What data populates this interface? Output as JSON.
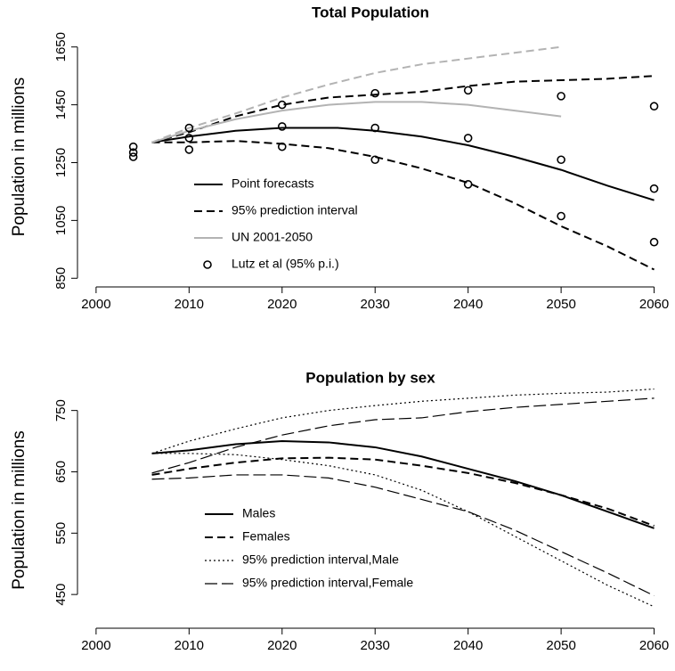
{
  "chart_data": [
    {
      "type": "line",
      "title": "Total Population",
      "y_label": "Population in millions",
      "xlim": [
        1998,
        2061
      ],
      "xticks": [
        2000,
        2010,
        2020,
        2030,
        2040,
        2050,
        2060
      ],
      "ylim": [
        820,
        1720
      ],
      "yticks": [
        850,
        1050,
        1250,
        1450,
        1650
      ],
      "legend": "bottom-left",
      "series": [
        {
          "name": "Point forecasts",
          "color": "#000000",
          "dash": "solid",
          "linewidth": 2,
          "x": [
            2006,
            2010,
            2015,
            2020,
            2026,
            2030,
            2035,
            2040,
            2045,
            2050,
            2055,
            2060
          ],
          "values": [
            1320,
            1340,
            1360,
            1370,
            1370,
            1360,
            1340,
            1310,
            1270,
            1225,
            1170,
            1120
          ]
        },
        {
          "name": "95% prediction interval",
          "color": "#000000",
          "dash": "dashed",
          "linewidth": 2,
          "x": [
            2006,
            2010,
            2015,
            2020,
            2025,
            2030,
            2035,
            2040,
            2045,
            2050,
            2055,
            2060
          ],
          "values": [
            1320,
            1355,
            1410,
            1450,
            1475,
            1485,
            1495,
            1515,
            1530,
            1535,
            1540,
            1550
          ]
        },
        {
          "color": "#000000",
          "dash": "dashed",
          "linewidth": 2,
          "x": [
            2006,
            2010,
            2015,
            2020,
            2025,
            2030,
            2035,
            2040,
            2045,
            2050,
            2055,
            2060
          ],
          "values": [
            1320,
            1320,
            1325,
            1315,
            1300,
            1270,
            1230,
            1180,
            1110,
            1030,
            960,
            880
          ]
        },
        {
          "name": "UN 2001-2050",
          "color": "#b3b3b3",
          "dash": "solid",
          "linewidth": 2,
          "x": [
            2006,
            2010,
            2015,
            2020,
            2025,
            2030,
            2035,
            2040,
            2045,
            2050
          ],
          "values": [
            1320,
            1360,
            1400,
            1430,
            1450,
            1460,
            1460,
            1450,
            1430,
            1410
          ]
        },
        {
          "color": "#b3b3b3",
          "dash": "dashed",
          "linewidth": 2,
          "x": [
            2006,
            2010,
            2015,
            2020,
            2025,
            2030,
            2035,
            2040,
            2045,
            2050
          ],
          "values": [
            1320,
            1370,
            1420,
            1475,
            1520,
            1560,
            1590,
            1610,
            1630,
            1650
          ]
        },
        {
          "name": "Lutz et al (95% p.i.)",
          "color": "#000000",
          "marker": "circle",
          "x": [
            2004,
            2004,
            2004,
            2010,
            2010,
            2010,
            2020,
            2020,
            2020,
            2030,
            2030,
            2030,
            2040,
            2040,
            2040,
            2050,
            2050,
            2050,
            2060,
            2060,
            2060
          ],
          "values": [
            1305,
            1285,
            1270,
            1370,
            1335,
            1295,
            1450,
            1375,
            1305,
            1490,
            1370,
            1260,
            1500,
            1335,
            1175,
            1480,
            1260,
            1065,
            1445,
            1160,
            975
          ]
        }
      ]
    },
    {
      "type": "line",
      "title": "Population by sex",
      "y_label": "Population in millions",
      "xlim": [
        1998,
        2061
      ],
      "xticks": [
        2000,
        2010,
        2020,
        2030,
        2040,
        2050,
        2060
      ],
      "ylim": [
        395,
        780
      ],
      "yticks": [
        450,
        550,
        650,
        750
      ],
      "legend": "bottom-left",
      "series": [
        {
          "name": "Males",
          "color": "#000000",
          "dash": "solid",
          "linewidth": 2,
          "x": [
            2006,
            2010,
            2015,
            2020,
            2025,
            2030,
            2035,
            2040,
            2045,
            2050,
            2055,
            2060
          ],
          "values": [
            680,
            685,
            695,
            700,
            698,
            690,
            675,
            655,
            635,
            612,
            585,
            558
          ]
        },
        {
          "name": "Females",
          "color": "#000000",
          "dash": "dashed",
          "linewidth": 2,
          "x": [
            2006,
            2010,
            2015,
            2020,
            2025,
            2030,
            2035,
            2040,
            2045,
            2050,
            2055,
            2060
          ],
          "values": [
            645,
            655,
            665,
            672,
            673,
            670,
            660,
            648,
            632,
            612,
            590,
            562
          ]
        },
        {
          "name": "95% prediction interval,Male",
          "color": "#000000",
          "dash": "dotted",
          "linewidth": 1.2,
          "x": [
            2006,
            2010,
            2015,
            2020,
            2025,
            2030,
            2035,
            2040,
            2045,
            2050,
            2055,
            2060
          ],
          "values": [
            680,
            700,
            720,
            738,
            750,
            758,
            765,
            770,
            775,
            778,
            780,
            785
          ]
        },
        {
          "color": "#000000",
          "dash": "dotted",
          "linewidth": 1.2,
          "x": [
            2006,
            2010,
            2015,
            2020,
            2025,
            2030,
            2035,
            2040,
            2045,
            2050,
            2055,
            2060
          ],
          "values": [
            680,
            680,
            678,
            670,
            660,
            645,
            620,
            585,
            545,
            505,
            465,
            430
          ]
        },
        {
          "name": "95% prediction interval,Female",
          "color": "#000000",
          "dash": "longdash",
          "linewidth": 1.2,
          "x": [
            2006,
            2010,
            2015,
            2020,
            2025,
            2030,
            2035,
            2040,
            2045,
            2050,
            2055,
            2060
          ],
          "values": [
            648,
            665,
            690,
            710,
            725,
            735,
            738,
            748,
            755,
            760,
            765,
            770
          ]
        },
        {
          "color": "#000000",
          "dash": "longdash",
          "linewidth": 1.2,
          "x": [
            2006,
            2010,
            2015,
            2020,
            2025,
            2030,
            2035,
            2040,
            2045,
            2050,
            2055,
            2060
          ],
          "values": [
            638,
            640,
            645,
            645,
            640,
            625,
            605,
            585,
            555,
            520,
            485,
            448
          ]
        }
      ]
    }
  ]
}
